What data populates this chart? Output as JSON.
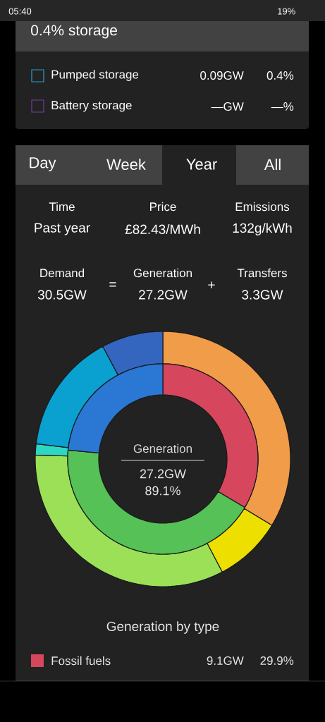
{
  "chart_data": [
    {
      "type": "other",
      "title": "0.4% storage",
      "annotations": [
        "05:40",
        "19%",
        "Pumped storage",
        "0.09GW",
        "0.4%",
        "Battery storage",
        "—GW",
        "—%",
        "Day",
        "Week",
        "Year",
        "All",
        "Time",
        "Past year",
        "Price",
        "£82.43/MWh",
        "Emissions",
        "132g/kWh",
        "Demand",
        "30.5GW",
        "=",
        "Generation",
        "27.2GW",
        "+",
        "Transfers",
        "3.3GW"
      ]
    },
    {
      "type": "donut",
      "categories": [
        null,
        null,
        null,
        null,
        null,
        null
      ],
      "values": [
        33.7,
        8.6,
        33.2,
        1.4,
        15.3,
        7.8
      ],
      "colors": [
        "#f09c48",
        "#ede000",
        "#9be056",
        "#2ed6c4",
        "#0aa0d0",
        "#3466c0"
      ]
    },
    {
      "type": "donut",
      "title": "Generation by type",
      "categories": [
        "Fossil fuels",
        null,
        null
      ],
      "values": [
        33.5,
        43.0,
        23.5
      ],
      "colors": [
        "#d6465c",
        "#55c157",
        "#2a78d4"
      ],
      "legend": "bottom",
      "annotations": [
        "Generation",
        "27.2GW",
        "89.1%",
        "9.1GW",
        "29.9%"
      ]
    }
  ]
}
